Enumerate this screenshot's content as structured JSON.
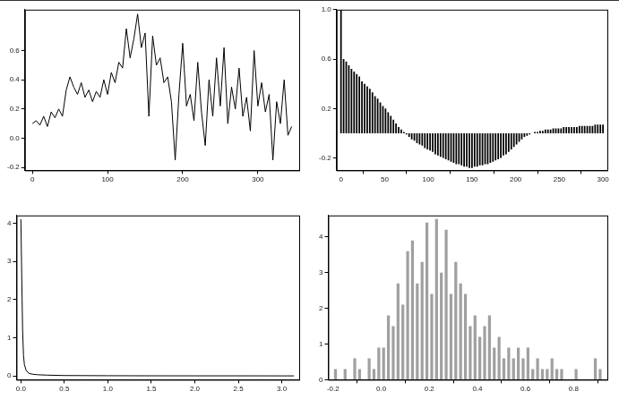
{
  "chart_data": [
    {
      "type": "line",
      "color": "#000000",
      "grid": false,
      "x": [
        0,
        5,
        10,
        15,
        20,
        25,
        30,
        35,
        40,
        45,
        50,
        55,
        60,
        65,
        70,
        75,
        80,
        85,
        90,
        95,
        100,
        105,
        110,
        115,
        120,
        125,
        130,
        135,
        140,
        145,
        150,
        155,
        160,
        165,
        170,
        175,
        180,
        185,
        190,
        195,
        200,
        205,
        210,
        215,
        220,
        225,
        230,
        235,
        240,
        245,
        250,
        255,
        260,
        265,
        270,
        275,
        280,
        285,
        290,
        295,
        300,
        305,
        310,
        315,
        320,
        325,
        330,
        335,
        340,
        345
      ],
      "values": [
        0.1,
        0.12,
        0.09,
        0.15,
        0.08,
        0.18,
        0.14,
        0.2,
        0.15,
        0.33,
        0.42,
        0.35,
        0.3,
        0.38,
        0.28,
        0.33,
        0.25,
        0.32,
        0.28,
        0.4,
        0.3,
        0.45,
        0.38,
        0.52,
        0.48,
        0.75,
        0.55,
        0.68,
        0.85,
        0.62,
        0.72,
        0.15,
        0.7,
        0.5,
        0.55,
        0.38,
        0.42,
        0.25,
        -0.15,
        0.3,
        0.65,
        0.22,
        0.3,
        0.12,
        0.52,
        0.18,
        -0.05,
        0.4,
        0.15,
        0.55,
        0.22,
        0.62,
        0.1,
        0.35,
        0.2,
        0.48,
        0.15,
        0.28,
        0.05,
        0.6,
        0.22,
        0.38,
        0.18,
        0.3,
        -0.15,
        0.25,
        0.1,
        0.4,
        0.02,
        0.08
      ],
      "xlim": [
        -10,
        355
      ],
      "xticks": [
        0,
        100,
        200,
        300
      ],
      "ylim": [
        -0.22,
        0.88
      ],
      "yticks": [
        -0.2,
        {
          "value": 0,
          "label": "0.0"
        },
        0.2,
        0.4,
        0.6
      ]
    },
    {
      "type": "bar",
      "color": "#000000",
      "grid": false,
      "x": [
        0,
        3,
        6,
        9,
        12,
        15,
        18,
        21,
        24,
        27,
        30,
        33,
        36,
        39,
        42,
        45,
        48,
        51,
        54,
        57,
        60,
        63,
        66,
        69,
        72,
        75,
        78,
        81,
        84,
        87,
        90,
        93,
        96,
        99,
        102,
        105,
        108,
        111,
        114,
        117,
        120,
        123,
        126,
        129,
        132,
        135,
        138,
        141,
        144,
        147,
        150,
        153,
        156,
        159,
        162,
        165,
        168,
        171,
        174,
        177,
        180,
        183,
        186,
        189,
        192,
        195,
        198,
        201,
        204,
        207,
        210,
        213,
        216,
        219,
        222,
        225,
        228,
        231,
        234,
        237,
        240,
        243,
        246,
        249,
        252,
        255,
        258,
        261,
        264,
        267,
        270,
        273,
        276,
        279,
        282,
        285,
        288,
        291,
        294,
        297,
        300
      ],
      "values": [
        1.0,
        0.6,
        0.58,
        0.55,
        0.52,
        0.5,
        0.48,
        0.46,
        0.42,
        0.4,
        0.38,
        0.36,
        0.33,
        0.3,
        0.28,
        0.25,
        0.22,
        0.2,
        0.17,
        0.14,
        0.11,
        0.08,
        0.05,
        0.03,
        0.01,
        -0.01,
        -0.03,
        -0.05,
        -0.06,
        -0.08,
        -0.09,
        -0.1,
        -0.12,
        -0.13,
        -0.14,
        -0.15,
        -0.17,
        -0.18,
        -0.19,
        -0.2,
        -0.21,
        -0.22,
        -0.23,
        -0.24,
        -0.25,
        -0.25,
        -0.26,
        -0.27,
        -0.27,
        -0.28,
        -0.28,
        -0.27,
        -0.27,
        -0.26,
        -0.26,
        -0.25,
        -0.25,
        -0.24,
        -0.23,
        -0.22,
        -0.21,
        -0.2,
        -0.18,
        -0.17,
        -0.15,
        -0.13,
        -0.11,
        -0.09,
        -0.07,
        -0.05,
        -0.03,
        -0.02,
        -0.01,
        0.0,
        0.01,
        0.01,
        0.02,
        0.02,
        0.03,
        0.03,
        0.03,
        0.04,
        0.04,
        0.04,
        0.04,
        0.05,
        0.05,
        0.05,
        0.05,
        0.05,
        0.05,
        0.06,
        0.06,
        0.06,
        0.06,
        0.06,
        0.06,
        0.07,
        0.07,
        0.07,
        0.07
      ],
      "xlim": [
        -5,
        305
      ],
      "xticks": [
        0,
        50,
        100,
        150,
        200,
        250,
        300
      ],
      "ylim": [
        -0.3,
        1.0
      ],
      "yticks": [
        -0.2,
        0.2,
        0.6,
        {
          "value": 1,
          "label": "1.0"
        }
      ]
    },
    {
      "type": "line",
      "color": "#000000",
      "grid": false,
      "x": [
        0,
        0.01,
        0.02,
        0.03,
        0.04,
        0.06,
        0.08,
        0.1,
        0.15,
        0.2,
        0.3,
        0.5,
        1.0,
        1.5,
        2.0,
        2.5,
        3.0,
        3.14
      ],
      "values": [
        4.1,
        2.6,
        1.2,
        0.55,
        0.3,
        0.15,
        0.09,
        0.06,
        0.04,
        0.03,
        0.02,
        0.01,
        0.005,
        0.003,
        0.002,
        0.002,
        0.001,
        0.001
      ],
      "xlim": [
        -0.05,
        3.2
      ],
      "xticks": [
        {
          "value": 0,
          "label": "0.0"
        },
        0.5,
        {
          "value": 1,
          "label": "1.0"
        },
        1.5,
        {
          "value": 2,
          "label": "2.0"
        },
        2.5,
        {
          "value": 3,
          "label": "3.0"
        }
      ],
      "ylim": [
        -0.1,
        4.2
      ],
      "yticks": [
        0,
        1,
        2,
        3,
        4
      ]
    },
    {
      "type": "histogram",
      "color": "#a0a0a0",
      "grid": false,
      "bins": [
        -0.2,
        -0.18,
        -0.16,
        -0.14,
        -0.12,
        -0.1,
        -0.08,
        -0.06,
        -0.04,
        -0.02,
        0,
        0.02,
        0.04,
        0.06,
        0.08,
        0.1,
        0.12,
        0.14,
        0.16,
        0.18,
        0.2,
        0.22,
        0.24,
        0.26,
        0.28,
        0.3,
        0.32,
        0.34,
        0.36,
        0.38,
        0.4,
        0.42,
        0.44,
        0.46,
        0.48,
        0.5,
        0.52,
        0.54,
        0.56,
        0.58,
        0.6,
        0.62,
        0.64,
        0.66,
        0.68,
        0.7,
        0.72,
        0.74,
        0.76,
        0.78,
        0.8,
        0.82,
        0.84,
        0.86,
        0.88,
        0.9,
        0.92
      ],
      "values": [
        0.3,
        0,
        0.3,
        0,
        0.6,
        0.3,
        0,
        0.6,
        0.3,
        0.9,
        0.9,
        1.8,
        1.5,
        2.7,
        2.1,
        3.6,
        3.9,
        2.7,
        3.3,
        4.4,
        2.4,
        4.5,
        3.0,
        4.2,
        2.4,
        3.3,
        2.7,
        2.4,
        1.5,
        1.8,
        1.2,
        1.5,
        1.8,
        0.9,
        1.2,
        0.6,
        0.9,
        0.6,
        0.9,
        0.6,
        0.9,
        0.3,
        0.6,
        0.3,
        0.3,
        0.6,
        0.3,
        0.3,
        0,
        0,
        0.3,
        0,
        0,
        0,
        0.6,
        0.3
      ],
      "xlim": [
        -0.22,
        0.94
      ],
      "xticks": [
        -0.2,
        {
          "value": 0,
          "label": "0.0"
        },
        0.2,
        0.4,
        0.6,
        0.8
      ],
      "ylim": [
        0,
        4.6
      ],
      "yticks": [
        0,
        1,
        2,
        3,
        4
      ]
    }
  ]
}
